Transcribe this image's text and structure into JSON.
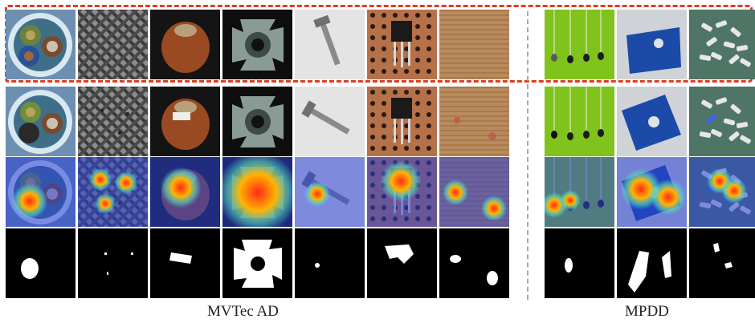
{
  "figure": {
    "groups": [
      {
        "label": "MVTec AD",
        "categories": [
          "cable",
          "carpet",
          "hazelnut",
          "metal-nut",
          "screw",
          "transistor",
          "wood"
        ]
      },
      {
        "label": "MPDD",
        "categories": [
          "connector",
          "metal-plate",
          "tubes"
        ]
      }
    ],
    "rows": [
      "normal-reference",
      "anomalous-sample",
      "anomaly-heatmap",
      "predicted-mask"
    ],
    "colors": {
      "highlight_box": "#e23b1e",
      "separator": "#a9a9a9",
      "mpdd_background_green": "#7fc31c"
    }
  }
}
